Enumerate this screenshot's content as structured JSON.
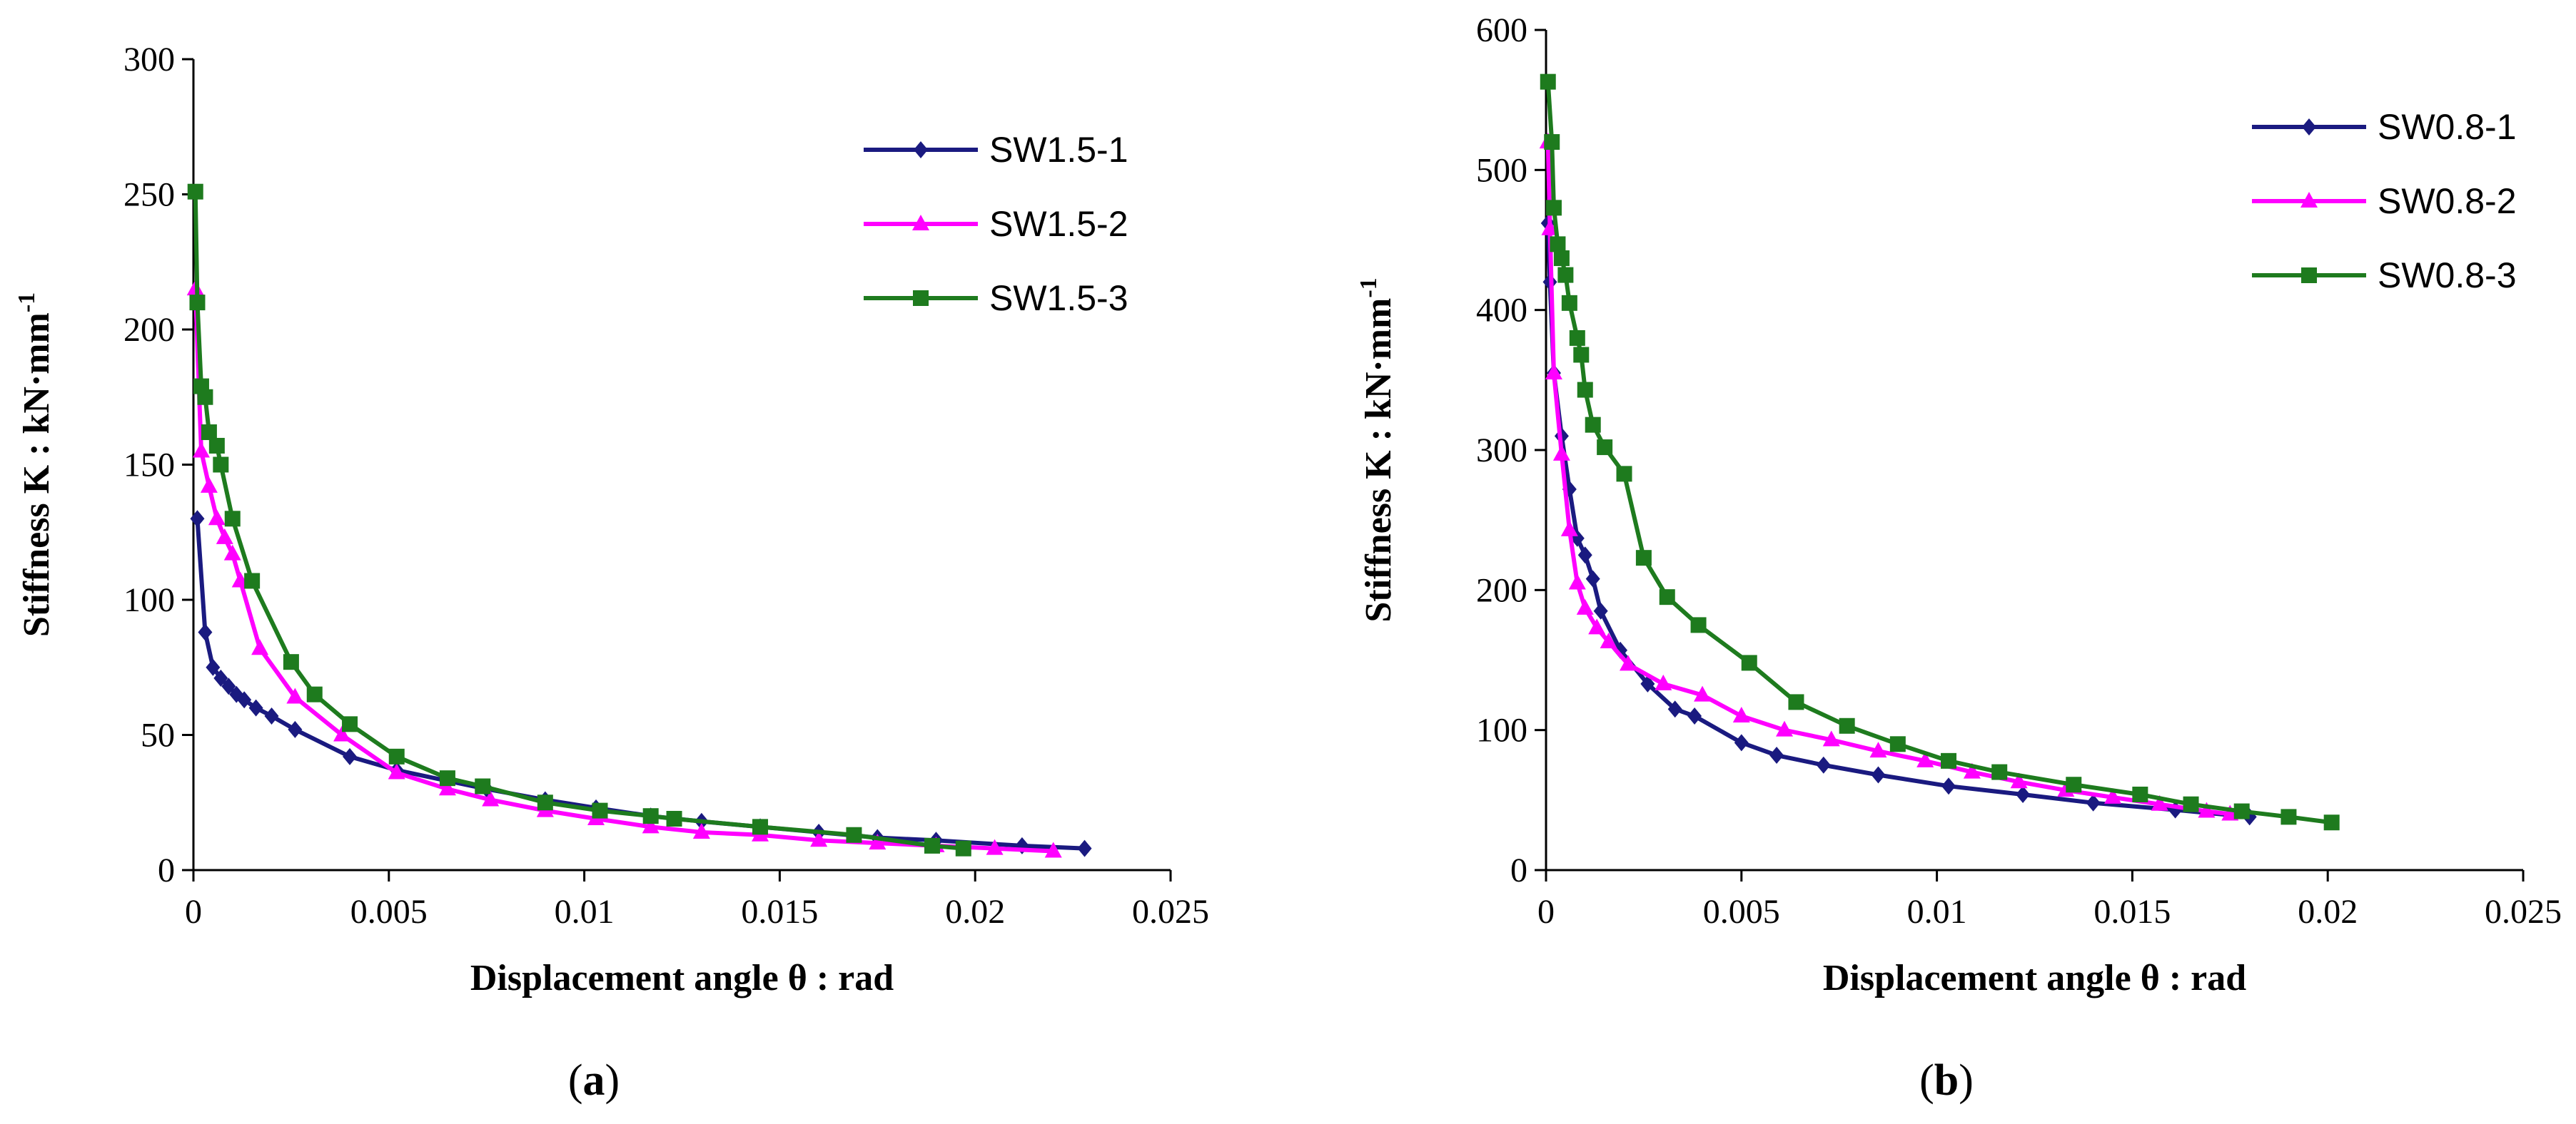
{
  "chart_data": [
    {
      "panel_label": {
        "open": "(",
        "letter": "a",
        "close": ")"
      },
      "type": "line",
      "xlabel": "Displacement angle θ : rad",
      "ylabel_main": "Stiffness K : kN·mm",
      "ylabel_sup": "-1",
      "xlim": [
        0,
        0.025
      ],
      "ylim": [
        0,
        300
      ],
      "x_ticks": [
        0,
        0.005,
        0.01,
        0.015,
        0.02,
        0.025
      ],
      "x_tick_labels": [
        "0",
        "0.005",
        "0.01",
        "0.015",
        "0.02",
        "0.025"
      ],
      "y_ticks": [
        0,
        50,
        100,
        150,
        200,
        250,
        300
      ],
      "y_tick_labels": [
        "0",
        "50",
        "100",
        "150",
        "200",
        "250",
        "300"
      ],
      "grid": false,
      "legend_position": "top-right",
      "series": [
        {
          "name": "SW1.5-1",
          "color": "#1a1a80",
          "marker": "diamond",
          "x": [
            0.0001,
            0.0003,
            0.0005,
            0.0007,
            0.0009,
            0.0011,
            0.0013,
            0.0016,
            0.002,
            0.0026,
            0.004,
            0.0052,
            0.0065,
            0.0075,
            0.009,
            0.0103,
            0.0117,
            0.013,
            0.0145,
            0.016,
            0.0175,
            0.019,
            0.0212,
            0.0228
          ],
          "y": [
            130,
            88,
            75,
            71,
            68,
            65,
            63,
            60,
            57,
            52,
            42,
            37,
            33,
            30,
            26,
            23,
            20,
            18,
            16,
            14,
            12,
            11,
            9,
            8
          ]
        },
        {
          "name": "SW1.5-2",
          "color": "#ff00ff",
          "marker": "triangle",
          "x": [
            5e-05,
            0.0002,
            0.0004,
            0.0006,
            0.0008,
            0.001,
            0.0012,
            0.0017,
            0.0026,
            0.0038,
            0.0052,
            0.0065,
            0.0076,
            0.009,
            0.0103,
            0.0117,
            0.013,
            0.0145,
            0.016,
            0.0175,
            0.019,
            0.0205,
            0.022
          ],
          "y": [
            215,
            155,
            142,
            130,
            123,
            117,
            107,
            82,
            64,
            50,
            36,
            30,
            26,
            22,
            19,
            16,
            14,
            13,
            11,
            10,
            9,
            8,
            7
          ]
        },
        {
          "name": "SW1.5-3",
          "color": "#1e7b1e",
          "marker": "square",
          "x": [
            5e-05,
            0.0001,
            0.0002,
            0.0003,
            0.0004,
            0.0006,
            0.0007,
            0.001,
            0.0015,
            0.0025,
            0.0031,
            0.004,
            0.0052,
            0.0065,
            0.0074,
            0.009,
            0.0104,
            0.0117,
            0.0123,
            0.0145,
            0.0169,
            0.0189,
            0.0197
          ],
          "y": [
            251,
            210,
            179,
            175,
            162,
            157,
            150,
            130,
            107,
            77,
            65,
            54,
            42,
            34,
            31,
            25,
            22,
            20,
            19,
            16,
            13,
            9,
            8
          ]
        }
      ]
    },
    {
      "panel_label": {
        "open": "(",
        "letter": "b",
        "close": ")"
      },
      "type": "line",
      "xlabel": "Displacement angle θ : rad",
      "ylabel_main": "Stiffness K : kN·mm",
      "ylabel_sup": "-1",
      "xlim": [
        0,
        0.025
      ],
      "ylim": [
        0,
        600
      ],
      "x_ticks": [
        0,
        0.005,
        0.01,
        0.015,
        0.02,
        0.025
      ],
      "x_tick_labels": [
        "0",
        "0.005",
        "0.01",
        "0.015",
        "0.02",
        "0.025"
      ],
      "y_ticks": [
        0,
        100,
        200,
        300,
        400,
        500,
        600
      ],
      "y_tick_labels": [
        "0",
        "100",
        "200",
        "300",
        "400",
        "500",
        "600"
      ],
      "grid": false,
      "legend_position": "top-right",
      "series": [
        {
          "name": "SW0.8-1",
          "color": "#1a1a80",
          "marker": "diamond",
          "x": [
            5e-05,
            0.0001,
            0.0002,
            0.0004,
            0.0006,
            0.0008,
            0.001,
            0.0012,
            0.0014,
            0.0019,
            0.0026,
            0.0033,
            0.0038,
            0.005,
            0.0059,
            0.0071,
            0.0085,
            0.0103,
            0.0122,
            0.014,
            0.0161,
            0.018
          ],
          "y": [
            462,
            420,
            355,
            310,
            272,
            237,
            225,
            208,
            185,
            157,
            133,
            115,
            110,
            91,
            82,
            75,
            68,
            60,
            54,
            48,
            43,
            38
          ]
        },
        {
          "name": "SW0.8-2",
          "color": "#ff00ff",
          "marker": "triangle",
          "x": [
            5e-05,
            0.0001,
            0.0002,
            0.0004,
            0.0006,
            0.0008,
            0.001,
            0.0013,
            0.0016,
            0.0021,
            0.003,
            0.004,
            0.005,
            0.0061,
            0.0073,
            0.0085,
            0.0097,
            0.0109,
            0.0121,
            0.0133,
            0.0145,
            0.0157,
            0.0169,
            0.0175
          ],
          "y": [
            520,
            458,
            355,
            297,
            243,
            205,
            187,
            173,
            163,
            147,
            133,
            125,
            110,
            100,
            93,
            85,
            78,
            70,
            63,
            57,
            52,
            47,
            42,
            40
          ]
        },
        {
          "name": "SW0.8-3",
          "color": "#1e7b1e",
          "marker": "square",
          "x": [
            5e-05,
            0.00015,
            0.0002,
            0.0003,
            0.0004,
            0.0005,
            0.0006,
            0.0008,
            0.0009,
            0.001,
            0.0012,
            0.0015,
            0.002,
            0.0025,
            0.0031,
            0.0039,
            0.0052,
            0.0064,
            0.0077,
            0.009,
            0.0103,
            0.0116,
            0.0135,
            0.0152,
            0.0165,
            0.0178,
            0.019,
            0.0201
          ],
          "y": [
            563,
            520,
            473,
            447,
            437,
            425,
            405,
            380,
            368,
            343,
            318,
            302,
            283,
            223,
            195,
            175,
            148,
            120,
            103,
            90,
            78,
            70,
            61,
            54,
            47,
            42,
            38,
            34
          ]
        }
      ]
    }
  ]
}
